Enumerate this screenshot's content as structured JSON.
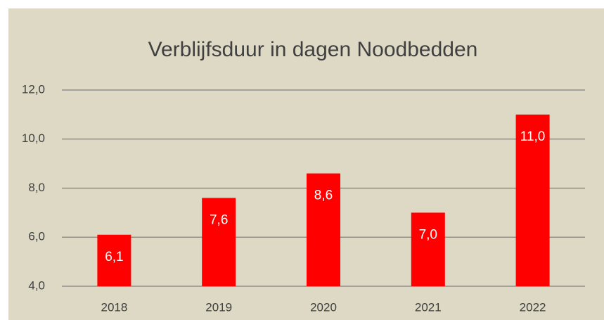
{
  "chart_data": {
    "type": "bar",
    "title": "Verblijfsduur in dagen Noodbedden",
    "categories": [
      "2018",
      "2019",
      "2020",
      "2021",
      "2022"
    ],
    "values": [
      6.1,
      7.6,
      8.6,
      7.0,
      11.0
    ],
    "value_labels": [
      "6,1",
      "7,6",
      "8,6",
      "7,0",
      "11,0"
    ],
    "color": "#ff0000",
    "ylim": [
      4,
      12
    ],
    "yticks": [
      {
        "value": 4,
        "label": "4,0"
      },
      {
        "value": 6,
        "label": "6,0"
      },
      {
        "value": 8,
        "label": "8,0"
      },
      {
        "value": 10,
        "label": "10,0"
      },
      {
        "value": 12,
        "label": "12,0"
      }
    ],
    "grid": true
  }
}
